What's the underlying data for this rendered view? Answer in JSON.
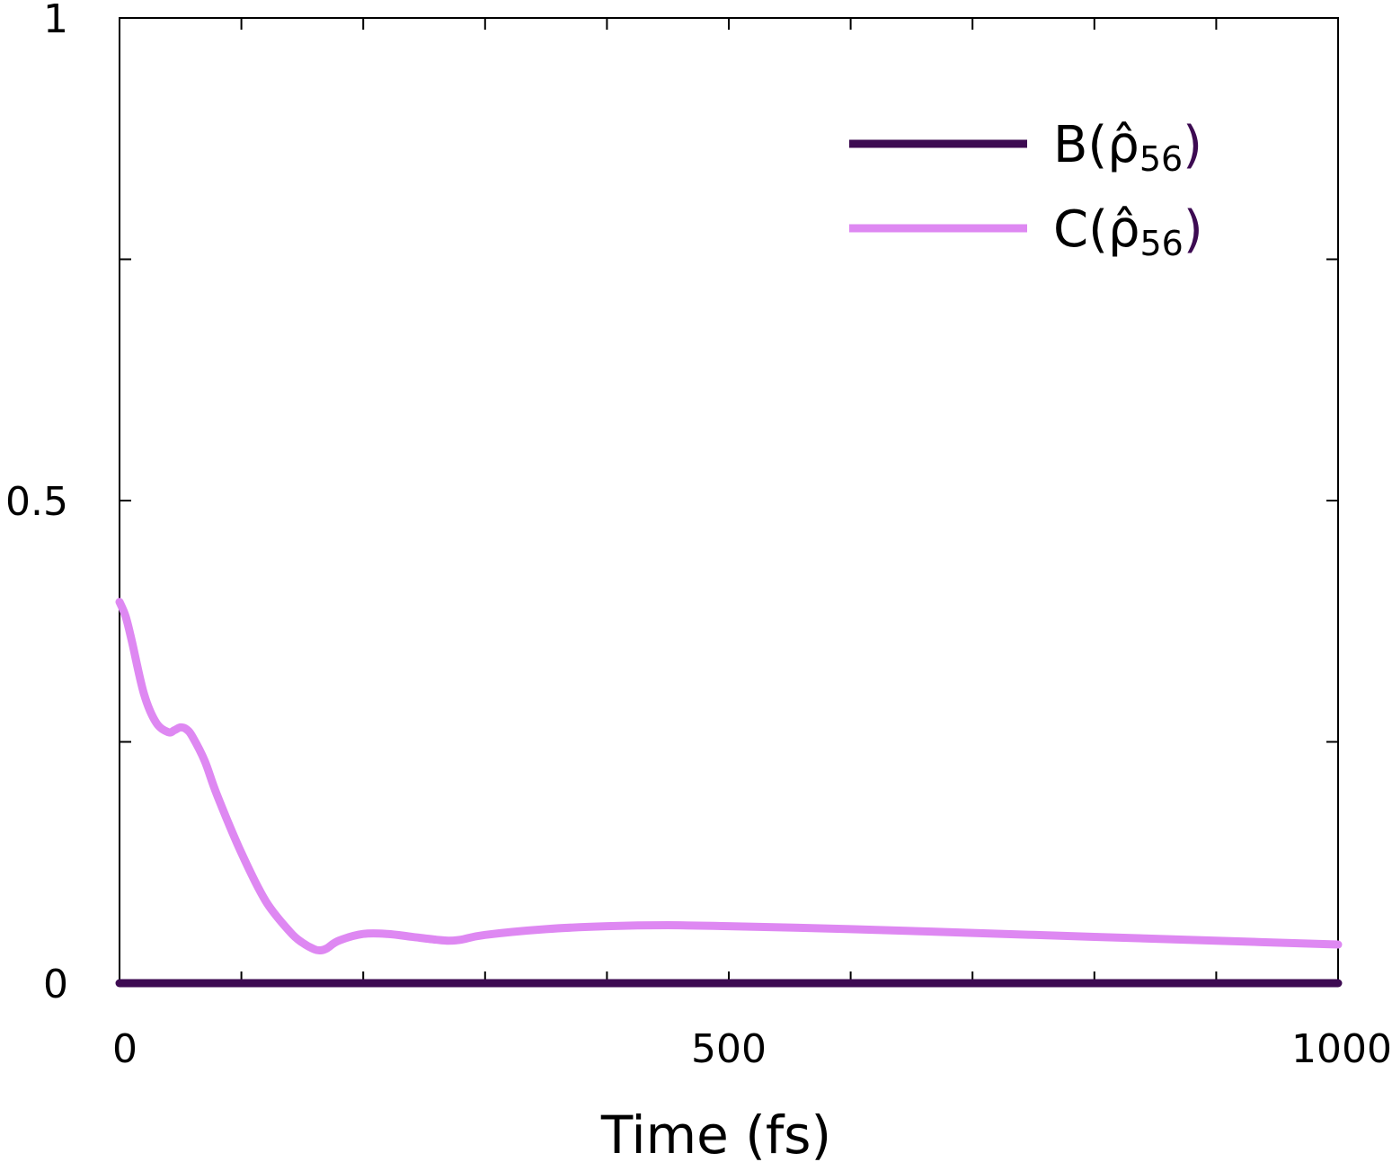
{
  "chart_data": {
    "type": "line",
    "xlabel": "Time (fs)",
    "ylabel": "",
    "xlim": [
      0,
      1000
    ],
    "ylim": [
      0,
      1
    ],
    "x_ticks": [
      {
        "value": 0,
        "label": "0"
      },
      {
        "value": 500,
        "label": "500"
      },
      {
        "value": 1000,
        "label": "1000"
      }
    ],
    "x_minor_ticks": [
      100,
      200,
      300,
      400,
      600,
      700,
      800,
      900
    ],
    "y_ticks": [
      {
        "value": 0,
        "label": "0"
      },
      {
        "value": 0.5,
        "label": "0.5"
      },
      {
        "value": 1,
        "label": "1"
      }
    ],
    "y_minor_ticks": [
      0.25,
      0.75
    ],
    "grid": false,
    "legend_position": "top-right",
    "series": [
      {
        "name": "B(ρ̂56)",
        "name_base": "B(ρ̂",
        "name_sub": "56",
        "name_close": ")",
        "color": "#3d0b52",
        "x": [
          0,
          1000
        ],
        "y": [
          0,
          0
        ]
      },
      {
        "name": "C(ρ̂56)",
        "name_base": "C(ρ̂",
        "name_sub": "56",
        "name_close": ")",
        "color": "#de88f2",
        "x": [
          0,
          5,
          10,
          20,
          30,
          40,
          45,
          50,
          55,
          60,
          70,
          80,
          100,
          120,
          140,
          150,
          160,
          165,
          170,
          180,
          200,
          220,
          240,
          260,
          270,
          280,
          300,
          350,
          400,
          450,
          500,
          600,
          700,
          800,
          900,
          1000
        ],
        "y": [
          0.395,
          0.38,
          0.355,
          0.3,
          0.27,
          0.26,
          0.262,
          0.265,
          0.263,
          0.255,
          0.23,
          0.195,
          0.135,
          0.085,
          0.053,
          0.042,
          0.035,
          0.034,
          0.036,
          0.044,
          0.051,
          0.051,
          0.048,
          0.045,
          0.044,
          0.045,
          0.05,
          0.056,
          0.059,
          0.06,
          0.059,
          0.056,
          0.052,
          0.048,
          0.044,
          0.04
        ]
      }
    ]
  }
}
